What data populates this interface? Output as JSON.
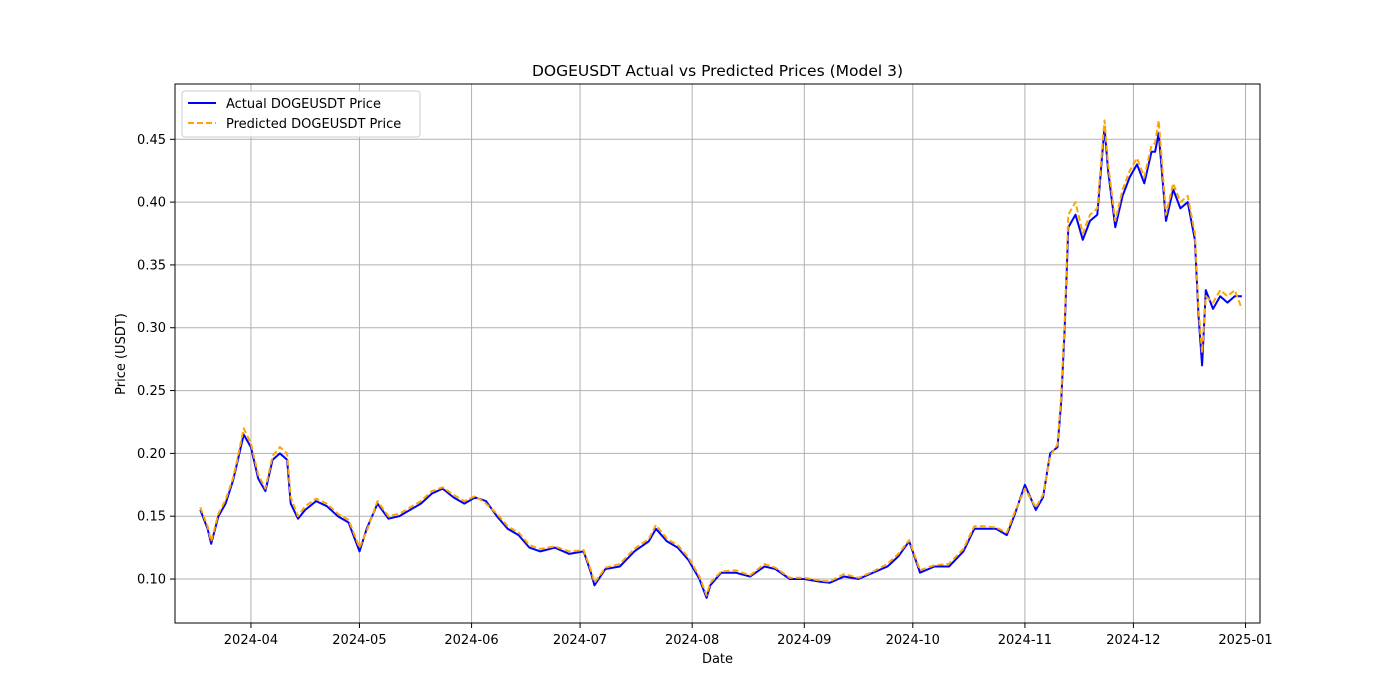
{
  "chart_data": {
    "type": "line",
    "title": "DOGEUSDT Actual vs Predicted Prices (Model 3)",
    "xlabel": "Date",
    "ylabel": "Price (USDT)",
    "x_ticks": [
      "2024-04",
      "2024-05",
      "2024-06",
      "2024-07",
      "2024-08",
      "2024-09",
      "2024-10",
      "2024-11",
      "2024-12",
      "2025-01"
    ],
    "y_ticks": [
      "0.10",
      "0.15",
      "0.20",
      "0.25",
      "0.30",
      "0.35",
      "0.40",
      "0.45"
    ],
    "xlim": [
      "2024-03-11",
      "2025-01-05"
    ],
    "ylim": [
      0.065,
      0.494
    ],
    "grid": true,
    "legend_position": "top-left",
    "series": [
      {
        "name": "Actual DOGEUSDT Price",
        "color": "#0000ff",
        "style": "solid",
        "x": [
          "2024-03-18",
          "2024-03-20",
          "2024-03-21",
          "2024-03-23",
          "2024-03-25",
          "2024-03-27",
          "2024-03-28",
          "2024-03-30",
          "2024-04-01",
          "2024-04-03",
          "2024-04-05",
          "2024-04-07",
          "2024-04-09",
          "2024-04-11",
          "2024-04-12",
          "2024-04-14",
          "2024-04-16",
          "2024-04-19",
          "2024-04-22",
          "2024-04-25",
          "2024-04-28",
          "2024-05-01",
          "2024-05-03",
          "2024-05-06",
          "2024-05-09",
          "2024-05-12",
          "2024-05-15",
          "2024-05-18",
          "2024-05-21",
          "2024-05-24",
          "2024-05-27",
          "2024-05-30",
          "2024-06-02",
          "2024-06-05",
          "2024-06-08",
          "2024-06-11",
          "2024-06-14",
          "2024-06-17",
          "2024-06-20",
          "2024-06-24",
          "2024-06-28",
          "2024-07-02",
          "2024-07-04",
          "2024-07-05",
          "2024-07-08",
          "2024-07-12",
          "2024-07-16",
          "2024-07-20",
          "2024-07-22",
          "2024-07-25",
          "2024-07-28",
          "2024-07-31",
          "2024-08-03",
          "2024-08-05",
          "2024-08-06",
          "2024-08-09",
          "2024-08-13",
          "2024-08-17",
          "2024-08-21",
          "2024-08-24",
          "2024-08-28",
          "2024-09-01",
          "2024-09-05",
          "2024-09-08",
          "2024-09-12",
          "2024-09-16",
          "2024-09-20",
          "2024-09-24",
          "2024-09-27",
          "2024-09-30",
          "2024-10-03",
          "2024-10-07",
          "2024-10-11",
          "2024-10-15",
          "2024-10-18",
          "2024-10-21",
          "2024-10-24",
          "2024-10-27",
          "2024-10-29",
          "2024-11-01",
          "2024-11-04",
          "2024-11-06",
          "2024-11-08",
          "2024-11-10",
          "2024-11-11",
          "2024-11-12",
          "2024-11-13",
          "2024-11-15",
          "2024-11-17",
          "2024-11-19",
          "2024-11-21",
          "2024-11-23",
          "2024-11-24",
          "2024-11-26",
          "2024-11-28",
          "2024-11-30",
          "2024-12-02",
          "2024-12-04",
          "2024-12-06",
          "2024-12-07",
          "2024-12-08",
          "2024-12-10",
          "2024-12-12",
          "2024-12-14",
          "2024-12-16",
          "2024-12-18",
          "2024-12-19",
          "2024-12-20",
          "2024-12-21",
          "2024-12-23",
          "2024-12-25",
          "2024-12-27",
          "2024-12-29",
          "2024-12-31"
        ],
        "values": [
          0.155,
          0.14,
          0.128,
          0.15,
          0.16,
          0.178,
          0.19,
          0.215,
          0.205,
          0.18,
          0.17,
          0.195,
          0.2,
          0.195,
          0.16,
          0.148,
          0.155,
          0.162,
          0.158,
          0.15,
          0.145,
          0.122,
          0.14,
          0.16,
          0.148,
          0.15,
          0.155,
          0.16,
          0.168,
          0.172,
          0.165,
          0.16,
          0.165,
          0.162,
          0.15,
          0.14,
          0.135,
          0.125,
          0.122,
          0.125,
          0.12,
          0.122,
          0.105,
          0.095,
          0.108,
          0.11,
          0.122,
          0.13,
          0.14,
          0.13,
          0.125,
          0.115,
          0.1,
          0.085,
          0.095,
          0.105,
          0.105,
          0.102,
          0.11,
          0.108,
          0.1,
          0.1,
          0.098,
          0.097,
          0.102,
          0.1,
          0.105,
          0.11,
          0.118,
          0.13,
          0.105,
          0.11,
          0.11,
          0.122,
          0.14,
          0.14,
          0.14,
          0.135,
          0.15,
          0.175,
          0.155,
          0.165,
          0.2,
          0.205,
          0.24,
          0.3,
          0.38,
          0.39,
          0.37,
          0.385,
          0.39,
          0.46,
          0.425,
          0.38,
          0.405,
          0.42,
          0.43,
          0.415,
          0.44,
          0.44,
          0.455,
          0.385,
          0.41,
          0.395,
          0.4,
          0.37,
          0.31,
          0.27,
          0.33,
          0.315,
          0.325,
          0.32,
          0.325,
          0.325
        ]
      },
      {
        "name": "Predicted DOGEUSDT Price",
        "color": "#ffa500",
        "style": "dashed",
        "x": [
          "2024-03-18",
          "2024-03-20",
          "2024-03-21",
          "2024-03-23",
          "2024-03-25",
          "2024-03-27",
          "2024-03-28",
          "2024-03-30",
          "2024-04-01",
          "2024-04-03",
          "2024-04-05",
          "2024-04-07",
          "2024-04-09",
          "2024-04-11",
          "2024-04-12",
          "2024-04-14",
          "2024-04-16",
          "2024-04-19",
          "2024-04-22",
          "2024-04-25",
          "2024-04-28",
          "2024-05-01",
          "2024-05-03",
          "2024-05-06",
          "2024-05-09",
          "2024-05-12",
          "2024-05-15",
          "2024-05-18",
          "2024-05-21",
          "2024-05-24",
          "2024-05-27",
          "2024-05-30",
          "2024-06-02",
          "2024-06-05",
          "2024-06-08",
          "2024-06-11",
          "2024-06-14",
          "2024-06-17",
          "2024-06-20",
          "2024-06-24",
          "2024-06-28",
          "2024-07-02",
          "2024-07-04",
          "2024-07-05",
          "2024-07-08",
          "2024-07-12",
          "2024-07-16",
          "2024-07-20",
          "2024-07-22",
          "2024-07-25",
          "2024-07-28",
          "2024-07-31",
          "2024-08-03",
          "2024-08-05",
          "2024-08-06",
          "2024-08-09",
          "2024-08-13",
          "2024-08-17",
          "2024-08-21",
          "2024-08-24",
          "2024-08-28",
          "2024-09-01",
          "2024-09-05",
          "2024-09-08",
          "2024-09-12",
          "2024-09-16",
          "2024-09-20",
          "2024-09-24",
          "2024-09-27",
          "2024-09-30",
          "2024-10-03",
          "2024-10-07",
          "2024-10-11",
          "2024-10-15",
          "2024-10-18",
          "2024-10-21",
          "2024-10-24",
          "2024-10-27",
          "2024-10-29",
          "2024-11-01",
          "2024-11-04",
          "2024-11-06",
          "2024-11-08",
          "2024-11-10",
          "2024-11-11",
          "2024-11-12",
          "2024-11-13",
          "2024-11-15",
          "2024-11-17",
          "2024-11-19",
          "2024-11-21",
          "2024-11-23",
          "2024-11-24",
          "2024-11-26",
          "2024-11-28",
          "2024-11-30",
          "2024-12-02",
          "2024-12-04",
          "2024-12-06",
          "2024-12-07",
          "2024-12-08",
          "2024-12-10",
          "2024-12-12",
          "2024-12-14",
          "2024-12-16",
          "2024-12-18",
          "2024-12-19",
          "2024-12-20",
          "2024-12-21",
          "2024-12-23",
          "2024-12-25",
          "2024-12-27",
          "2024-12-29",
          "2024-12-31"
        ],
        "values": [
          0.157,
          0.142,
          0.13,
          0.152,
          0.163,
          0.18,
          0.192,
          0.22,
          0.208,
          0.183,
          0.172,
          0.198,
          0.205,
          0.2,
          0.165,
          0.15,
          0.158,
          0.164,
          0.16,
          0.152,
          0.147,
          0.125,
          0.138,
          0.162,
          0.15,
          0.152,
          0.157,
          0.162,
          0.17,
          0.173,
          0.167,
          0.162,
          0.166,
          0.16,
          0.152,
          0.142,
          0.137,
          0.127,
          0.124,
          0.126,
          0.122,
          0.123,
          0.107,
          0.097,
          0.109,
          0.112,
          0.124,
          0.132,
          0.143,
          0.132,
          0.127,
          0.117,
          0.102,
          0.087,
          0.097,
          0.106,
          0.107,
          0.103,
          0.112,
          0.109,
          0.101,
          0.101,
          0.099,
          0.098,
          0.104,
          0.101,
          0.106,
          0.112,
          0.12,
          0.131,
          0.107,
          0.111,
          0.112,
          0.124,
          0.142,
          0.142,
          0.141,
          0.137,
          0.152,
          0.172,
          0.157,
          0.167,
          0.198,
          0.207,
          0.245,
          0.305,
          0.39,
          0.4,
          0.375,
          0.39,
          0.395,
          0.465,
          0.43,
          0.385,
          0.41,
          0.425,
          0.435,
          0.42,
          0.445,
          0.447,
          0.465,
          0.39,
          0.415,
          0.4,
          0.405,
          0.375,
          0.315,
          0.28,
          0.325,
          0.32,
          0.33,
          0.325,
          0.33,
          0.315
        ]
      }
    ]
  }
}
